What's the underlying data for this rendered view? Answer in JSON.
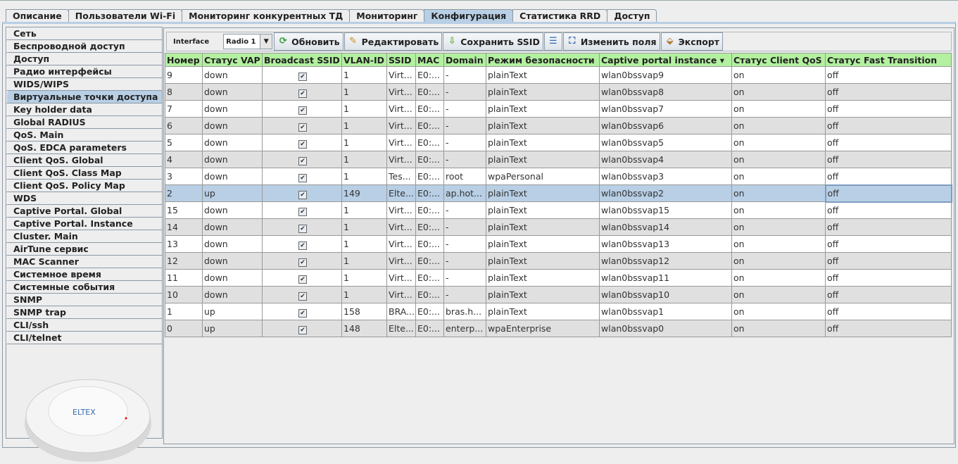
{
  "tabs": [
    "Описание",
    "Пользователи Wi-Fi",
    "Мониторинг конкурентных ТД",
    "Мониторинг",
    "Конфигурация",
    "Статистика RRD",
    "Доступ"
  ],
  "active_tab": 4,
  "sidebar": {
    "active": 6,
    "items": [
      "Сеть",
      "Беспроводной доступ",
      "Доступ",
      "Радио интерфейсы",
      "WIDS/WIPS",
      "Виртуальные точки доступа",
      "Key holder data",
      "Global RADIUS",
      "QoS. Main",
      "QoS. EDCA parameters",
      "Client QoS. Global",
      "Client QoS. Class Map",
      "Client QoS. Policy Map",
      "WDS",
      "Captive Portal. Global",
      "Captive Portal. Instance",
      "Cluster. Main",
      "AirTune сервис",
      "MAC Scanner",
      "Системное время",
      "Системные события",
      "SNMP",
      "SNMP trap",
      "CLI/ssh",
      "CLI/telnet"
    ],
    "device_logo": "ELTEX"
  },
  "toolbar": {
    "interface_label": "Interface",
    "interface_value": "Radio 1",
    "refresh": "Обновить",
    "edit": "Редактировать",
    "save_ssid": "Сохранить SSID",
    "change_fields": "Изменить поля",
    "export": "Экспорт"
  },
  "table": {
    "headers": [
      "Номер",
      "Статус VAP",
      "Broadcast SSID",
      "VLAN-ID",
      "SSID",
      "MAC",
      "Domain",
      "Режим безопасности",
      "Captive portal instance",
      "Статус Client QoS",
      "Статус Fast Transition"
    ],
    "sort_column": 8,
    "selected_row": 7,
    "rows": [
      [
        "9",
        "down",
        true,
        "1",
        "Virt...",
        "E0:...",
        "-",
        "plainText",
        "wlan0bssvap9",
        "on",
        "off"
      ],
      [
        "8",
        "down",
        true,
        "1",
        "Virt...",
        "E0:...",
        "-",
        "plainText",
        "wlan0bssvap8",
        "on",
        "off"
      ],
      [
        "7",
        "down",
        true,
        "1",
        "Virt...",
        "E0:...",
        "-",
        "plainText",
        "wlan0bssvap7",
        "on",
        "off"
      ],
      [
        "6",
        "down",
        true,
        "1",
        "Virt...",
        "E0:...",
        "-",
        "plainText",
        "wlan0bssvap6",
        "on",
        "off"
      ],
      [
        "5",
        "down",
        true,
        "1",
        "Virt...",
        "E0:...",
        "-",
        "plainText",
        "wlan0bssvap5",
        "on",
        "off"
      ],
      [
        "4",
        "down",
        true,
        "1",
        "Virt...",
        "E0:...",
        "-",
        "plainText",
        "wlan0bssvap4",
        "on",
        "off"
      ],
      [
        "3",
        "down",
        true,
        "1",
        "Tes...",
        "E0:...",
        "root",
        "wpaPersonal",
        "wlan0bssvap3",
        "on",
        "off"
      ],
      [
        "2",
        "up",
        true,
        "149",
        "Elte...",
        "E0:...",
        "ap.hot...",
        "plainText",
        "wlan0bssvap2",
        "on",
        "off"
      ],
      [
        "15",
        "down",
        true,
        "1",
        "Virt...",
        "E0:...",
        "-",
        "plainText",
        "wlan0bssvap15",
        "on",
        "off"
      ],
      [
        "14",
        "down",
        true,
        "1",
        "Virt...",
        "E0:...",
        "-",
        "plainText",
        "wlan0bssvap14",
        "on",
        "off"
      ],
      [
        "13",
        "down",
        true,
        "1",
        "Virt...",
        "E0:...",
        "-",
        "plainText",
        "wlan0bssvap13",
        "on",
        "off"
      ],
      [
        "12",
        "down",
        true,
        "1",
        "Virt...",
        "E0:...",
        "-",
        "plainText",
        "wlan0bssvap12",
        "on",
        "off"
      ],
      [
        "11",
        "down",
        true,
        "1",
        "Virt...",
        "E0:...",
        "-",
        "plainText",
        "wlan0bssvap11",
        "on",
        "off"
      ],
      [
        "10",
        "down",
        true,
        "1",
        "Virt...",
        "E0:...",
        "-",
        "plainText",
        "wlan0bssvap10",
        "on",
        "off"
      ],
      [
        "1",
        "up",
        true,
        "158",
        "BRA...",
        "E0:...",
        "bras.h...",
        "plainText",
        "wlan0bssvap1",
        "on",
        "off"
      ],
      [
        "0",
        "up",
        true,
        "148",
        "Elte...",
        "E0:...",
        "enterp...",
        "wpaEnterprise",
        "wlan0bssvap0",
        "on",
        "off"
      ]
    ]
  }
}
